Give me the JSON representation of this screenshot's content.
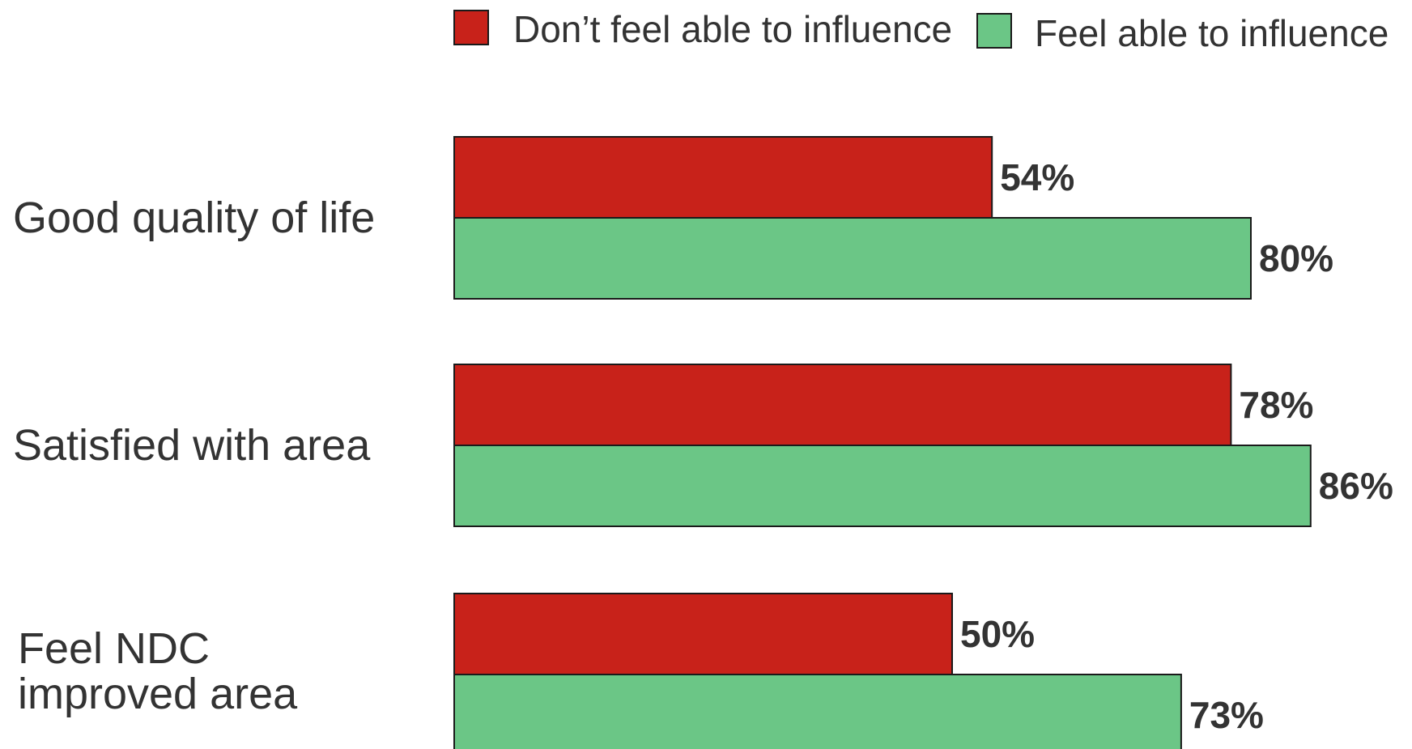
{
  "chart_data": {
    "type": "bar",
    "orientation": "horizontal",
    "categories": [
      [
        "Good quality of life"
      ],
      [
        "Satisfied with area"
      ],
      [
        "Feel NDC",
        "improved area"
      ]
    ],
    "series": [
      {
        "name": "Don’t feel able to influence",
        "color": "#c8221a",
        "values": [
          54,
          78,
          50
        ]
      },
      {
        "name": "Feel able to influence",
        "color": "#6bc686",
        "values": [
          80,
          86,
          73
        ]
      }
    ],
    "value_suffix": "%",
    "xlim": [
      0,
      100
    ],
    "legend_position": "top",
    "grid": false
  }
}
